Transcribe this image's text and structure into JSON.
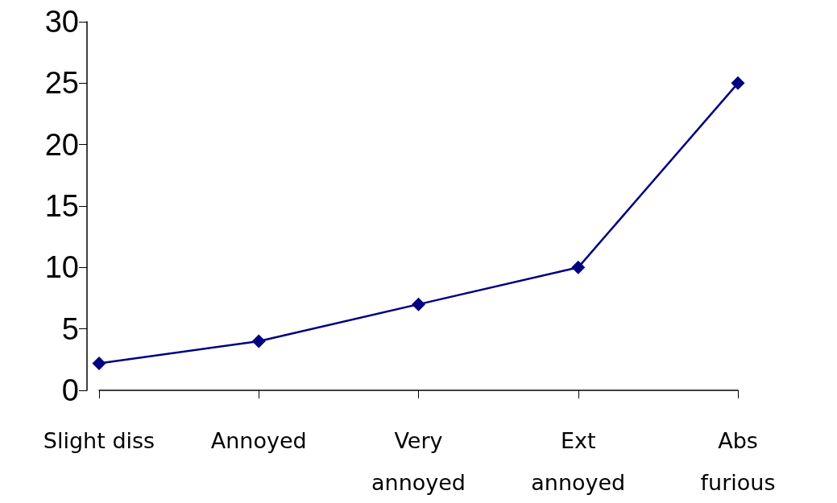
{
  "chart_data": {
    "type": "line",
    "categories": [
      "Slight diss",
      "Annoyed",
      "Very\nannoyed",
      "Ext\nannoyed",
      "Abs\nfurious"
    ],
    "series": [
      {
        "color": "#000080",
        "values": [
          2.2,
          4,
          7,
          10,
          25
        ]
      }
    ],
    "ylim": [
      0,
      30
    ],
    "yticks": [
      0,
      5,
      10,
      15,
      20,
      25,
      30
    ],
    "grid": false,
    "marker": "diamond",
    "line_style": "solid"
  }
}
